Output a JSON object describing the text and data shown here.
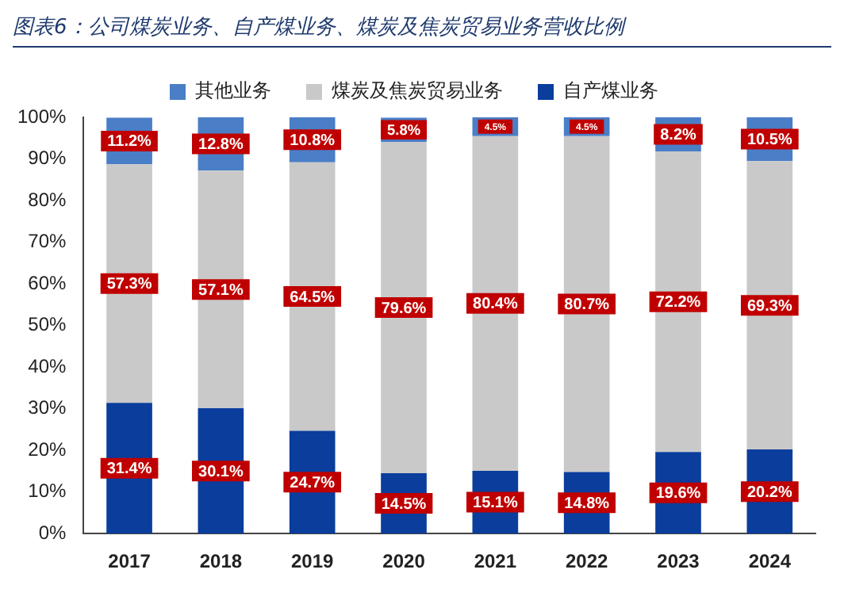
{
  "chart_data": {
    "type": "bar",
    "stacked": true,
    "title": "图表6：公司煤炭业务、自产煤业务、煤炭及焦炭贸易业务营收比例",
    "categories": [
      "2017",
      "2018",
      "2019",
      "2020",
      "2021",
      "2022",
      "2023",
      "2024"
    ],
    "series": [
      {
        "name": "自产煤业务",
        "color": "#0a3d9c",
        "values": [
          31.4,
          30.1,
          24.7,
          14.5,
          15.1,
          14.8,
          19.6,
          20.2
        ],
        "value_labels": [
          "31.4%",
          "30.1%",
          "24.7%",
          "14.5%",
          "15.1%",
          "14.8%",
          "19.6%",
          "20.2%"
        ]
      },
      {
        "name": "煤炭及焦炭贸易业务",
        "color": "#c9c9c9",
        "values": [
          57.3,
          57.1,
          64.5,
          79.6,
          80.4,
          80.7,
          72.2,
          69.3
        ],
        "value_labels": [
          "57.3%",
          "57.1%",
          "64.5%",
          "79.6%",
          "80.4%",
          "80.7%",
          "72.2%",
          "69.3%"
        ]
      },
      {
        "name": "其他业务",
        "color": "#4a7ec6",
        "values": [
          11.2,
          12.8,
          10.8,
          5.8,
          4.5,
          4.5,
          8.2,
          10.5
        ],
        "value_labels": [
          "11.2%",
          "12.8%",
          "10.8%",
          "5.8%",
          "4.5%",
          "4.5%",
          "8.2%",
          "10.5%"
        ]
      }
    ],
    "ylim": [
      0,
      100
    ],
    "yticks": [
      {
        "value": 0,
        "label": "0%"
      },
      {
        "value": 10,
        "label": "10%"
      },
      {
        "value": 20,
        "label": "20%"
      },
      {
        "value": 30,
        "label": "30%"
      },
      {
        "value": 40,
        "label": "40%"
      },
      {
        "value": 50,
        "label": "50%"
      },
      {
        "value": 60,
        "label": "60%"
      },
      {
        "value": 70,
        "label": "70%"
      },
      {
        "value": 80,
        "label": "80%"
      },
      {
        "value": 90,
        "label": "90%"
      },
      {
        "value": 100,
        "label": "100%"
      }
    ],
    "grid": false,
    "legend": "top"
  }
}
